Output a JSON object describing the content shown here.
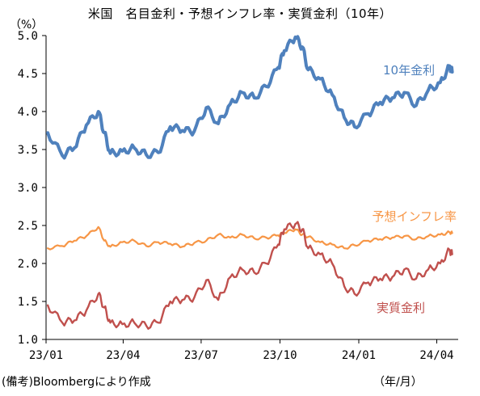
{
  "chart_data": {
    "type": "line",
    "title": "米国　名目金利・予想インフレ率・実質金利（10年）",
    "ylabel": "（%）",
    "xlabel": "（年/月）",
    "note": "(備考)Bloombergにより作成",
    "ylim": [
      1.0,
      5.0
    ],
    "yticks": [
      "1.0",
      "1.5",
      "2.0",
      "2.5",
      "3.0",
      "3.5",
      "4.0",
      "4.5",
      "5.0"
    ],
    "xticks": [
      "23/01",
      "23/04",
      "23/07",
      "23/10",
      "24/01",
      "24/04"
    ],
    "grid": false,
    "legend": "inline labels",
    "x": [
      "2023-01-03",
      "2023-01-20",
      "2023-02-03",
      "2023-02-17",
      "2023-03-03",
      "2023-03-10",
      "2023-03-17",
      "2023-03-31",
      "2023-04-14",
      "2023-04-28",
      "2023-05-12",
      "2023-05-26",
      "2023-06-09",
      "2023-06-23",
      "2023-07-07",
      "2023-07-21",
      "2023-08-04",
      "2023-08-18",
      "2023-09-01",
      "2023-09-15",
      "2023-09-29",
      "2023-10-06",
      "2023-10-19",
      "2023-10-27",
      "2023-11-03",
      "2023-11-17",
      "2023-12-01",
      "2023-12-15",
      "2023-12-27",
      "2024-01-12",
      "2024-01-26",
      "2024-02-09",
      "2024-02-23",
      "2024-03-08",
      "2024-03-22",
      "2024-04-05",
      "2024-04-16",
      "2024-04-19"
    ],
    "series": [
      {
        "name": "10年金利",
        "color": "#4F81BD",
        "values": [
          3.72,
          3.42,
          3.52,
          3.82,
          4.0,
          3.72,
          3.45,
          3.48,
          3.52,
          3.43,
          3.46,
          3.8,
          3.75,
          3.74,
          4.05,
          3.84,
          4.1,
          4.25,
          4.18,
          4.33,
          4.58,
          4.8,
          4.98,
          4.85,
          4.55,
          4.43,
          4.22,
          3.92,
          3.8,
          3.97,
          4.12,
          4.18,
          4.25,
          4.08,
          4.28,
          4.38,
          4.6,
          4.52
        ]
      },
      {
        "name": "予想インフレ率",
        "color": "#F79646",
        "values": [
          2.2,
          2.23,
          2.3,
          2.36,
          2.48,
          2.3,
          2.22,
          2.28,
          2.3,
          2.23,
          2.28,
          2.26,
          2.22,
          2.27,
          2.3,
          2.38,
          2.34,
          2.38,
          2.33,
          2.34,
          2.37,
          2.4,
          2.45,
          2.38,
          2.35,
          2.28,
          2.25,
          2.2,
          2.24,
          2.3,
          2.32,
          2.34,
          2.36,
          2.32,
          2.36,
          2.38,
          2.41,
          2.4
        ]
      },
      {
        "name": "実質金利",
        "color": "#C0504D",
        "values": [
          1.45,
          1.22,
          1.25,
          1.38,
          1.6,
          1.42,
          1.22,
          1.2,
          1.22,
          1.18,
          1.22,
          1.5,
          1.52,
          1.55,
          1.78,
          1.52,
          1.82,
          1.92,
          1.88,
          2.0,
          2.25,
          2.45,
          2.52,
          2.45,
          2.2,
          2.12,
          2.0,
          1.7,
          1.6,
          1.75,
          1.8,
          1.82,
          1.92,
          1.8,
          1.92,
          2.0,
          2.18,
          2.12
        ]
      }
    ],
    "series_labels": [
      "10年金利",
      "予想インフレ率",
      "実質金利"
    ]
  }
}
